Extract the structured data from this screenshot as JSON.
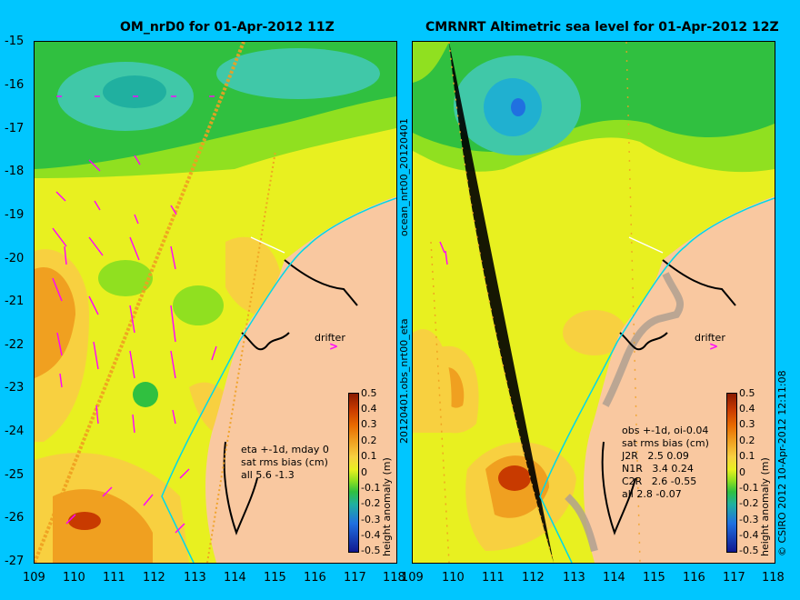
{
  "left_panel": {
    "title": "OM_nrD0 for 01-Apr-2012 11Z",
    "annotation": "eta +-1d, mday 0\nsat rms bias (cm)\nall 5.6 -1.3",
    "drifter_label": "drifter",
    "colorbar_label": "height anomaly (m)"
  },
  "right_panel": {
    "title": "CMRNRT Altimetric sea level  for 01-Apr-2012 12Z",
    "annotation": "obs +-1d, oi-0.04\nsat rms bias (cm)\nJ2R   2.5 0.09\nN1R   3.4 0.24\nC2R   2.6 -0.55\nall 2.8 -0.07",
    "drifter_label": "drifter",
    "colorbar_label": "height anomaly (m)"
  },
  "side_labels": {
    "top": "ocean_nrt00_20120401",
    "bottom": "20120401.obs_nrt00_eta",
    "credit": "© CSIRO 2012  10-Apr-2012 12:11:08"
  },
  "y_ticks": [
    "-15",
    "-16",
    "-17",
    "-18",
    "-19",
    "-20",
    "-21",
    "-22",
    "-23",
    "-24",
    "-25",
    "-26",
    "-27"
  ],
  "x_ticks": [
    "109",
    "110",
    "111",
    "112",
    "113",
    "114",
    "115",
    "116",
    "117",
    "118"
  ],
  "colorbar_ticks": [
    "0.5",
    "0.4",
    "0.3",
    "0.2",
    "0.1",
    "0",
    "-0.1",
    "-0.2",
    "-0.3",
    "-0.4",
    "-0.5"
  ],
  "colors": {
    "background": "#00c6ff",
    "land": "#f9c8a0",
    "velocity_arrows": "#ff00ff",
    "track": "#ff8800",
    "drifter_track": "#00d8e8",
    "colorbar": [
      "#8a1a00",
      "#c83a00",
      "#e86a00",
      "#f0a020",
      "#f8d040",
      "#e8f020",
      "#90e020",
      "#30c040",
      "#20b0a0",
      "#2070e0",
      "#101890"
    ]
  }
}
